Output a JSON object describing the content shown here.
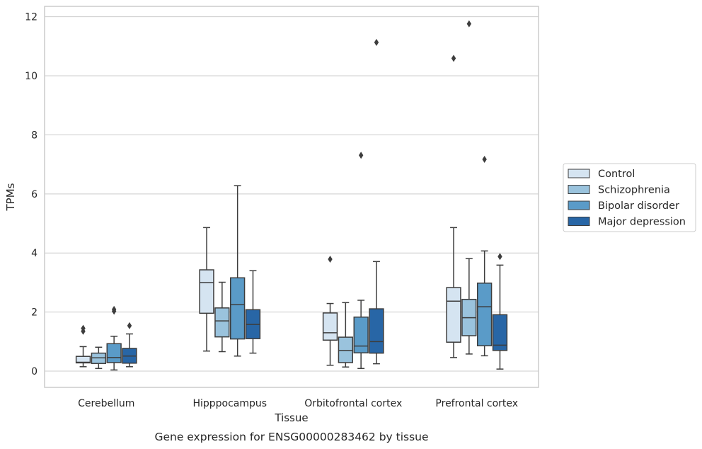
{
  "chart_data": {
    "type": "box",
    "xlabel": "Tissue",
    "ylabel": "TPMs",
    "caption": "Gene expression for ENSG00000283462 by tissue",
    "ylim": [
      -0.55,
      12.35
    ],
    "yticks": [
      "0",
      "2",
      "4",
      "6",
      "8",
      "10",
      "12"
    ],
    "grid": true,
    "legend_position": "right",
    "categories": [
      "Cerebellum",
      "Hipppocampus",
      "Orbitofrontal cortex",
      "Prefrontal cortex"
    ],
    "series": [
      {
        "name": "Control",
        "color": "#d5e4f1",
        "boxes": [
          {
            "min": 0.15,
            "q1": 0.28,
            "median": 0.3,
            "q3": 0.5,
            "max": 0.83,
            "outliers": [
              1.35,
              1.45
            ]
          },
          {
            "min": 0.68,
            "q1": 1.96,
            "median": 3.0,
            "q3": 3.43,
            "max": 4.86,
            "outliers": []
          },
          {
            "min": 0.2,
            "q1": 1.05,
            "median": 1.3,
            "q3": 1.97,
            "max": 2.29,
            "outliers": [
              3.79
            ]
          },
          {
            "min": 0.46,
            "q1": 0.98,
            "median": 2.37,
            "q3": 2.83,
            "max": 4.86,
            "outliers": [
              10.59
            ]
          }
        ]
      },
      {
        "name": "Schizophrenia",
        "color": "#9ac3dd",
        "boxes": [
          {
            "min": 0.09,
            "q1": 0.26,
            "median": 0.45,
            "q3": 0.61,
            "max": 0.81,
            "outliers": []
          },
          {
            "min": 0.66,
            "q1": 1.16,
            "median": 1.7,
            "q3": 2.14,
            "max": 3.01,
            "outliers": []
          },
          {
            "min": 0.14,
            "q1": 0.29,
            "median": 0.7,
            "q3": 1.15,
            "max": 2.32,
            "outliers": []
          },
          {
            "min": 0.58,
            "q1": 1.2,
            "median": 1.81,
            "q3": 2.43,
            "max": 3.81,
            "outliers": [
              11.76
            ]
          }
        ]
      },
      {
        "name": "Bipolar disorder",
        "color": "#5a9bc8",
        "boxes": [
          {
            "min": 0.04,
            "q1": 0.29,
            "median": 0.46,
            "q3": 0.93,
            "max": 1.18,
            "outliers": [
              2.03,
              2.09
            ]
          },
          {
            "min": 0.51,
            "q1": 1.09,
            "median": 2.25,
            "q3": 3.16,
            "max": 6.28,
            "outliers": []
          },
          {
            "min": 0.09,
            "q1": 0.62,
            "median": 0.85,
            "q3": 1.83,
            "max": 2.4,
            "outliers": [
              7.31
            ]
          },
          {
            "min": 0.52,
            "q1": 0.86,
            "median": 2.18,
            "q3": 2.98,
            "max": 4.07,
            "outliers": [
              7.17
            ]
          }
        ]
      },
      {
        "name": "Major depression",
        "color": "#2866a6",
        "boxes": [
          {
            "min": 0.15,
            "q1": 0.27,
            "median": 0.51,
            "q3": 0.77,
            "max": 1.26,
            "outliers": [
              1.54
            ]
          },
          {
            "min": 0.61,
            "q1": 1.1,
            "median": 1.58,
            "q3": 2.08,
            "max": 3.4,
            "outliers": []
          },
          {
            "min": 0.25,
            "q1": 0.61,
            "median": 1.0,
            "q3": 2.11,
            "max": 3.71,
            "outliers": [
              11.13
            ]
          },
          {
            "min": 0.07,
            "q1": 0.7,
            "median": 0.88,
            "q3": 1.91,
            "max": 3.59,
            "outliers": [
              3.88
            ]
          }
        ]
      }
    ]
  }
}
